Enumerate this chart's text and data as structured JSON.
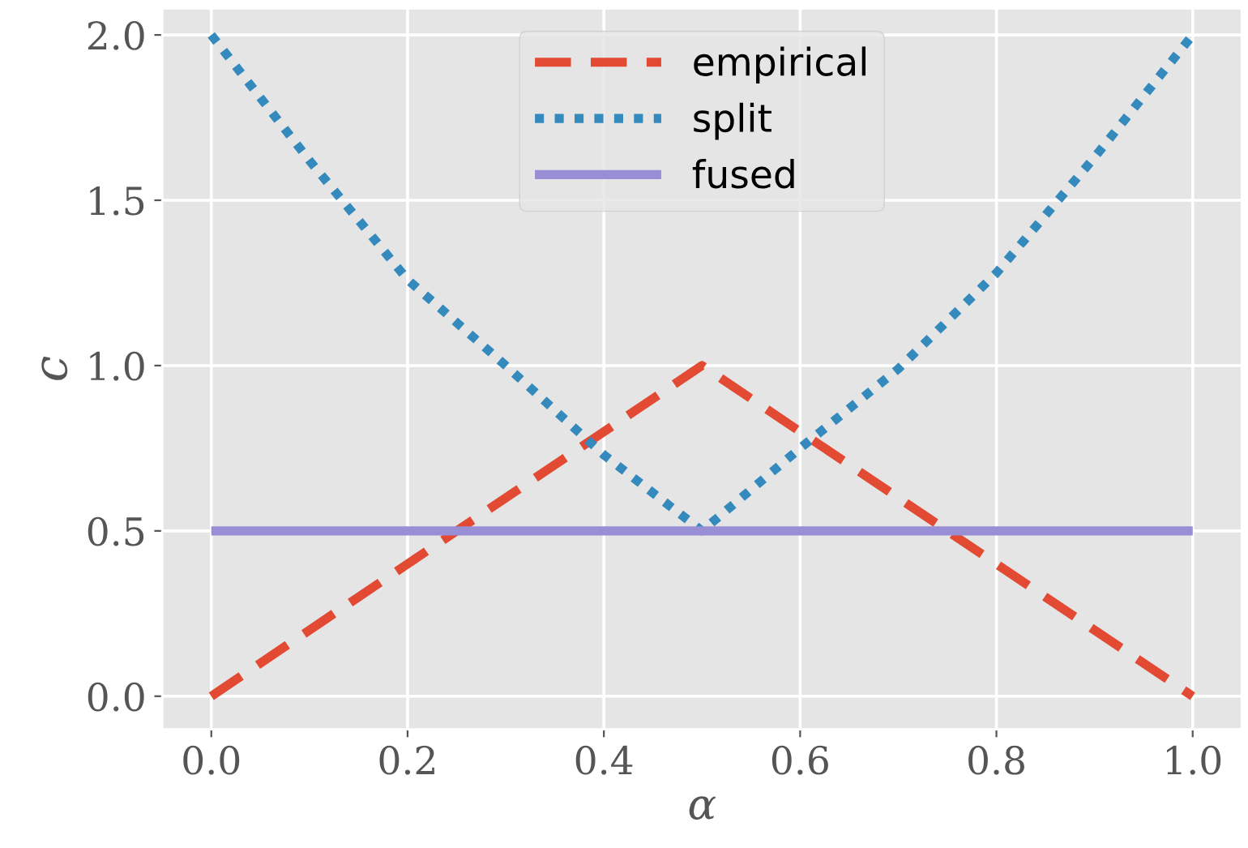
{
  "chart_data": {
    "type": "line",
    "xlabel": "α",
    "ylabel": "c",
    "xlim": [
      -0.05,
      1.05
    ],
    "ylim": [
      -0.1,
      2.08
    ],
    "xticks": [
      {
        "value": 0,
        "label": "0.0"
      },
      {
        "value": 0.2,
        "label": "0.2"
      },
      {
        "value": 0.4,
        "label": "0.4"
      },
      {
        "value": 0.6,
        "label": "0.6"
      },
      {
        "value": 0.8,
        "label": "0.8"
      },
      {
        "value": 1,
        "label": "1.0"
      }
    ],
    "yticks": [
      {
        "value": 0,
        "label": "0.0"
      },
      {
        "value": 0.5,
        "label": "0.5"
      },
      {
        "value": 1,
        "label": "1.0"
      },
      {
        "value": 1.5,
        "label": "1.5"
      },
      {
        "value": 2,
        "label": "2.0"
      }
    ],
    "grid": true,
    "legend": "top",
    "marker": "none",
    "series": [
      {
        "name": "empirical",
        "color": "#e24a33",
        "line_style": "dashed",
        "x": [
          0,
          0.5,
          1
        ],
        "values": [
          0,
          1,
          0
        ]
      },
      {
        "name": "split",
        "color": "#348abd",
        "line_style": "dotted",
        "x": [
          0,
          0.1,
          0.2,
          0.3,
          0.4,
          0.5,
          0.6,
          0.7,
          0.8,
          0.9,
          1
        ],
        "values": [
          2,
          1.62,
          1.26,
          1.0,
          0.73,
          0.5,
          0.75,
          0.99,
          1.28,
          1.63,
          2
        ]
      },
      {
        "name": "fused",
        "color": "#988ed5",
        "line_style": "solid",
        "x": [
          0,
          1
        ],
        "values": [
          0.5,
          0.5
        ]
      }
    ]
  }
}
